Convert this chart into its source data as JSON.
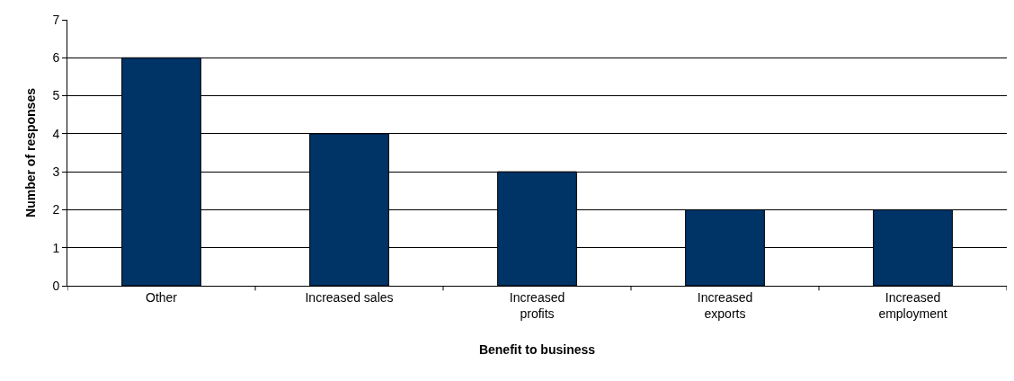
{
  "chart_data": {
    "type": "bar",
    "xlabel": "Benefit to business",
    "ylabel": "Number of responses",
    "categories": [
      "Other",
      "Increased sales",
      "Increased profits",
      "Increased exports",
      "Increased employment"
    ],
    "values": [
      6,
      4,
      3,
      2,
      2
    ],
    "color": "#003366",
    "ylim": [
      0,
      7
    ],
    "yticks": [
      0,
      1,
      2,
      3,
      4,
      5,
      6,
      7
    ],
    "grid": "y"
  }
}
